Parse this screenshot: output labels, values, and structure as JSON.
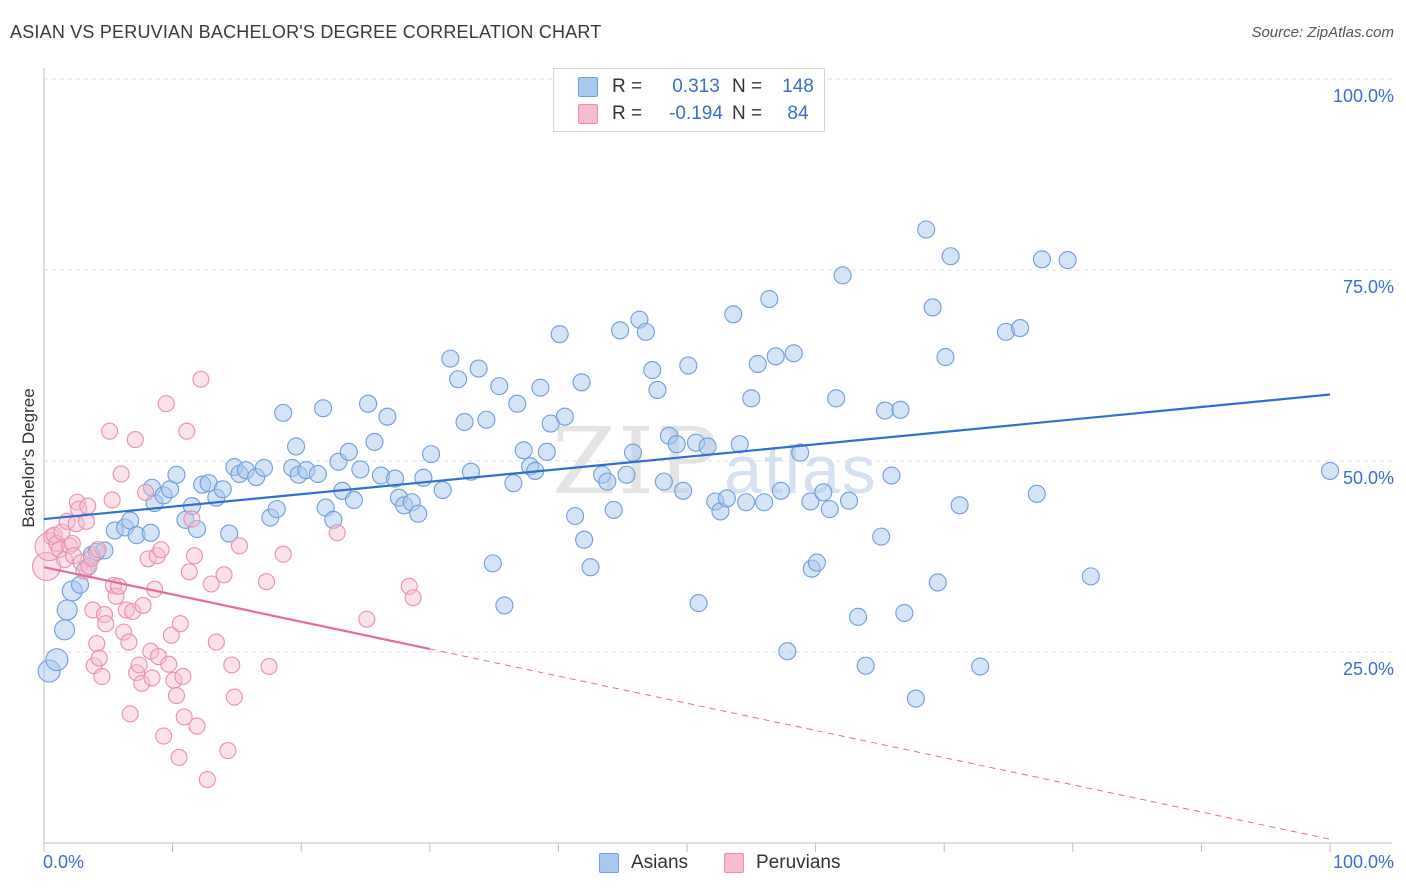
{
  "title": "ASIAN VS PERUVIAN BACHELOR'S DEGREE CORRELATION CHART",
  "source": "Source: ZipAtlas.com",
  "watermark": {
    "zip": "ZIP",
    "atlas": "atlas"
  },
  "legend_top": {
    "rows": [
      {
        "r_label": "R =",
        "r_value": "0.313",
        "n_label": "N =",
        "n_value": "148"
      },
      {
        "r_label": "R =",
        "r_value": "-0.194",
        "n_label": "N =",
        "n_value": "84"
      }
    ]
  },
  "legend_bottom": {
    "series1": "Asians",
    "series2": "Peruvians"
  },
  "colors": {
    "asian_fill": "#a9c8ee",
    "asian_stroke": "#6d9fdc",
    "asian_line": "#2f6fcf",
    "peruvian_fill": "#f7bcd0",
    "peruvian_stroke": "#ea8fae",
    "peruvian_line": "#e8699a",
    "tick_text": "#3a6fd0",
    "grid": "#dcdcdc"
  },
  "chart_data": {
    "type": "scatter",
    "title": "ASIAN VS PERUVIAN BACHELOR'S DEGREE CORRELATION CHART",
    "xlabel": "",
    "ylabel": "Bachelor's Degree",
    "xlim": [
      0,
      100
    ],
    "ylim": [
      0,
      100
    ],
    "x_tick_labels": [
      "0.0%",
      "100.0%"
    ],
    "y_tick_labels": [
      "25.0%",
      "50.0%",
      "75.0%",
      "100.0%"
    ],
    "y_ticks": [
      25,
      50,
      75,
      100
    ],
    "grid": "horizontal dashed",
    "series": [
      {
        "name": "Asians",
        "R": 0.313,
        "N": 148,
        "trend": {
          "x": [
            0,
            100
          ],
          "y": [
            42.4,
            58.7
          ],
          "style": "solid"
        },
        "points": [
          [
            0.4,
            22.5
          ],
          [
            1.0,
            24
          ],
          [
            1.6,
            27.9
          ],
          [
            1.8,
            30.5
          ],
          [
            2.2,
            33
          ],
          [
            2.8,
            33.8
          ],
          [
            3.3,
            36
          ],
          [
            3.7,
            37.7
          ],
          [
            4.1,
            38.1
          ],
          [
            4.7,
            38.3
          ],
          [
            5.5,
            40.9
          ],
          [
            6.3,
            41.3
          ],
          [
            6.7,
            42.2
          ],
          [
            7.2,
            40.3
          ],
          [
            8.3,
            40.6
          ],
          [
            8.6,
            44.5
          ],
          [
            8.4,
            46.5
          ],
          [
            9.3,
            45.5
          ],
          [
            9.8,
            46.3
          ],
          [
            10.3,
            48.2
          ],
          [
            11.0,
            42.3
          ],
          [
            11.5,
            44.1
          ],
          [
            11.9,
            41.1
          ],
          [
            12.3,
            46.9
          ],
          [
            12.8,
            47.1
          ],
          [
            13.4,
            45.2
          ],
          [
            13.9,
            46.3
          ],
          [
            14.4,
            40.5
          ],
          [
            14.8,
            49.2
          ],
          [
            15.2,
            48.3
          ],
          [
            15.7,
            48.8
          ],
          [
            16.5,
            47.9
          ],
          [
            17.1,
            49.1
          ],
          [
            17.6,
            42.6
          ],
          [
            18.1,
            43.7
          ],
          [
            18.6,
            56.3
          ],
          [
            19.3,
            49.1
          ],
          [
            19.6,
            51.9
          ],
          [
            19.8,
            48.2
          ],
          [
            20.4,
            48.8
          ],
          [
            21.3,
            48.3
          ],
          [
            21.7,
            56.9
          ],
          [
            21.9,
            43.9
          ],
          [
            22.5,
            42.3
          ],
          [
            22.9,
            49.9
          ],
          [
            23.2,
            46.1
          ],
          [
            23.7,
            51.2
          ],
          [
            24.1,
            44.9
          ],
          [
            24.6,
            48.9
          ],
          [
            25.2,
            57.5
          ],
          [
            25.7,
            52.5
          ],
          [
            26.2,
            48.1
          ],
          [
            26.7,
            55.8
          ],
          [
            27.3,
            47.7
          ],
          [
            27.6,
            45.2
          ],
          [
            28.0,
            44.2
          ],
          [
            28.6,
            44.6
          ],
          [
            29.1,
            43.1
          ],
          [
            29.5,
            47.8
          ],
          [
            30.1,
            50.9
          ],
          [
            31.0,
            46.2
          ],
          [
            31.6,
            63.4
          ],
          [
            32.2,
            60.7
          ],
          [
            32.7,
            55.1
          ],
          [
            33.2,
            48.6
          ],
          [
            33.8,
            62.1
          ],
          [
            34.4,
            55.4
          ],
          [
            34.9,
            36.6
          ],
          [
            35.4,
            59.8
          ],
          [
            35.8,
            31.1
          ],
          [
            36.5,
            47.1
          ],
          [
            36.8,
            57.5
          ],
          [
            37.3,
            51.4
          ],
          [
            37.8,
            49.3
          ],
          [
            38.2,
            48.7
          ],
          [
            38.6,
            59.6
          ],
          [
            39.1,
            51.2
          ],
          [
            39.4,
            54.9
          ],
          [
            40.1,
            66.6
          ],
          [
            40.5,
            55.8
          ],
          [
            41.3,
            42.8
          ],
          [
            41.8,
            60.3
          ],
          [
            42.0,
            39.7
          ],
          [
            42.5,
            36.1
          ],
          [
            43.4,
            48.2
          ],
          [
            43.8,
            47.3
          ],
          [
            44.3,
            43.6
          ],
          [
            44.8,
            67.1
          ],
          [
            45.3,
            48.2
          ],
          [
            45.8,
            51.1
          ],
          [
            46.3,
            68.5
          ],
          [
            46.8,
            66.9
          ],
          [
            47.3,
            61.9
          ],
          [
            47.7,
            59.3
          ],
          [
            48.2,
            47.3
          ],
          [
            48.6,
            53.3
          ],
          [
            49.2,
            52.2
          ],
          [
            49.7,
            46.1
          ],
          [
            50.1,
            62.5
          ],
          [
            50.7,
            52.4
          ],
          [
            50.9,
            31.4
          ],
          [
            51.6,
            51.9
          ],
          [
            52.2,
            44.7
          ],
          [
            52.6,
            43.4
          ],
          [
            53.1,
            45.1
          ],
          [
            53.6,
            69.2
          ],
          [
            54.1,
            52.2
          ],
          [
            54.6,
            44.6
          ],
          [
            55.0,
            58.2
          ],
          [
            55.5,
            62.7
          ],
          [
            56.0,
            44.6
          ],
          [
            56.4,
            71.2
          ],
          [
            56.9,
            63.7
          ],
          [
            57.3,
            46.1
          ],
          [
            57.8,
            25.1
          ],
          [
            58.3,
            64.1
          ],
          [
            58.8,
            51.1
          ],
          [
            59.6,
            44.7
          ],
          [
            59.7,
            35.9
          ],
          [
            60.1,
            36.7
          ],
          [
            60.6,
            45.9
          ],
          [
            61.1,
            43.7
          ],
          [
            61.6,
            58.2
          ],
          [
            62.1,
            74.3
          ],
          [
            62.6,
            44.8
          ],
          [
            63.3,
            29.6
          ],
          [
            63.9,
            23.2
          ],
          [
            65.1,
            40.1
          ],
          [
            65.4,
            56.6
          ],
          [
            65.9,
            48.1
          ],
          [
            66.6,
            56.7
          ],
          [
            66.9,
            30.1
          ],
          [
            67.8,
            18.9
          ],
          [
            68.6,
            80.3
          ],
          [
            69.1,
            70.1
          ],
          [
            69.5,
            34.1
          ],
          [
            70.1,
            63.6
          ],
          [
            70.5,
            76.8
          ],
          [
            71.2,
            44.2
          ],
          [
            72.8,
            23.1
          ],
          [
            74.8,
            66.9
          ],
          [
            75.9,
            67.4
          ],
          [
            77.2,
            45.7
          ],
          [
            77.6,
            76.4
          ],
          [
            79.6,
            76.3
          ],
          [
            81.4,
            34.9
          ],
          [
            100,
            48.7
          ]
        ]
      },
      {
        "name": "Peruvians",
        "R": -0.194,
        "N": 84,
        "trend": {
          "x": [
            0,
            30
          ],
          "y": [
            36.1,
            25.4
          ],
          "style": "solid",
          "extension": {
            "x": [
              30,
              100
            ],
            "y": [
              25.4,
              0.5
            ],
            "style": "dashed"
          }
        },
        "points": [
          [
            0.2,
            36.2
          ],
          [
            0.4,
            38.8
          ],
          [
            0.6,
            40.1
          ],
          [
            0.8,
            40.3
          ],
          [
            1.0,
            39.2
          ],
          [
            1.2,
            38.4
          ],
          [
            1.4,
            40.7
          ],
          [
            1.6,
            37.1
          ],
          [
            1.8,
            42.1
          ],
          [
            2.0,
            38.9
          ],
          [
            2.2,
            39.2
          ],
          [
            2.3,
            37.6
          ],
          [
            2.5,
            41.8
          ],
          [
            2.6,
            44.6
          ],
          [
            2.7,
            43.7
          ],
          [
            2.9,
            36.7
          ],
          [
            3.1,
            35.6
          ],
          [
            3.3,
            42.1
          ],
          [
            3.4,
            44.1
          ],
          [
            3.5,
            36.2
          ],
          [
            3.7,
            37.3
          ],
          [
            3.8,
            30.5
          ],
          [
            3.9,
            23.2
          ],
          [
            4.1,
            26.1
          ],
          [
            4.2,
            38.4
          ],
          [
            4.3,
            24.2
          ],
          [
            4.5,
            21.8
          ],
          [
            4.7,
            29.9
          ],
          [
            4.8,
            28.7
          ],
          [
            5.1,
            53.9
          ],
          [
            5.3,
            44.9
          ],
          [
            5.4,
            33.7
          ],
          [
            5.6,
            32.3
          ],
          [
            5.8,
            33.6
          ],
          [
            6.0,
            48.3
          ],
          [
            6.2,
            27.6
          ],
          [
            6.4,
            30.5
          ],
          [
            6.6,
            26.3
          ],
          [
            6.7,
            16.9
          ],
          [
            6.9,
            30.3
          ],
          [
            7.1,
            52.8
          ],
          [
            7.2,
            22.3
          ],
          [
            7.4,
            23.3
          ],
          [
            7.6,
            20.9
          ],
          [
            7.7,
            31.1
          ],
          [
            7.9,
            45.9
          ],
          [
            8.1,
            37.2
          ],
          [
            8.3,
            25.1
          ],
          [
            8.4,
            21.6
          ],
          [
            8.6,
            33.2
          ],
          [
            8.8,
            37.6
          ],
          [
            8.9,
            24.4
          ],
          [
            9.1,
            38.4
          ],
          [
            9.3,
            14.0
          ],
          [
            9.5,
            57.5
          ],
          [
            9.7,
            23.4
          ],
          [
            9.9,
            27.2
          ],
          [
            10.1,
            21.3
          ],
          [
            10.3,
            19.3
          ],
          [
            10.5,
            11.2
          ],
          [
            10.6,
            28.7
          ],
          [
            10.8,
            21.8
          ],
          [
            10.9,
            16.5
          ],
          [
            11.1,
            53.9
          ],
          [
            11.3,
            35.5
          ],
          [
            11.5,
            42.4
          ],
          [
            11.7,
            37.6
          ],
          [
            11.9,
            15.3
          ],
          [
            12.2,
            60.7
          ],
          [
            12.7,
            8.3
          ],
          [
            13.0,
            33.9
          ],
          [
            13.4,
            26.3
          ],
          [
            14.0,
            35.1
          ],
          [
            14.3,
            12.1
          ],
          [
            14.6,
            23.3
          ],
          [
            14.8,
            19.1
          ],
          [
            15.2,
            38.9
          ],
          [
            17.3,
            34.2
          ],
          [
            17.5,
            23.1
          ],
          [
            18.6,
            37.8
          ],
          [
            22.8,
            40.6
          ],
          [
            25.1,
            29.3
          ],
          [
            28.4,
            33.6
          ],
          [
            28.7,
            32.1
          ]
        ]
      }
    ]
  }
}
